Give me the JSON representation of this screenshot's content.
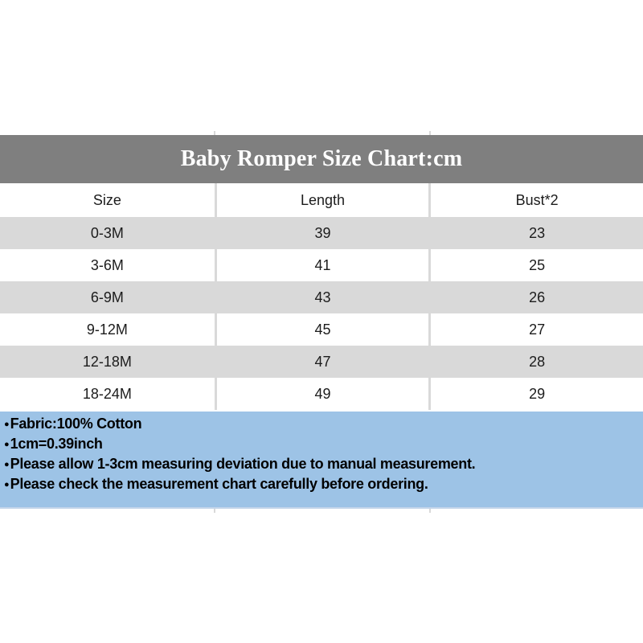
{
  "chart_data": {
    "type": "table",
    "title": "Baby Romper Size Chart:cm",
    "columns": [
      "Size",
      "Length",
      "Bust*2"
    ],
    "rows": [
      [
        "0-3M",
        "39",
        "23"
      ],
      [
        "3-6M",
        "41",
        "25"
      ],
      [
        "6-9M",
        "43",
        "26"
      ],
      [
        "9-12M",
        "45",
        "27"
      ],
      [
        "12-18M",
        "47",
        "28"
      ],
      [
        "18-24M",
        "49",
        "29"
      ]
    ],
    "units": "cm",
    "layout": {
      "stripe_rows": "odd data rows shaded",
      "column_count": 3
    }
  },
  "title_bar": {
    "text": "Baby Romper Size Chart:cm"
  },
  "notes": {
    "bullet": "●",
    "items": [
      "Fabric:100% Cotton",
      "1cm=0.39inch",
      "Please allow 1-3cm measuring deviation due to manual measurement.",
      "Please check the measurement chart carefully before ordering."
    ]
  },
  "colors": {
    "title_bar_bg": "#7f7f7f",
    "title_text": "#ffffff",
    "row_stripe": "#d9d9d9",
    "notes_bg": "#9dc3e6",
    "body_text": "#1c1c1c"
  }
}
